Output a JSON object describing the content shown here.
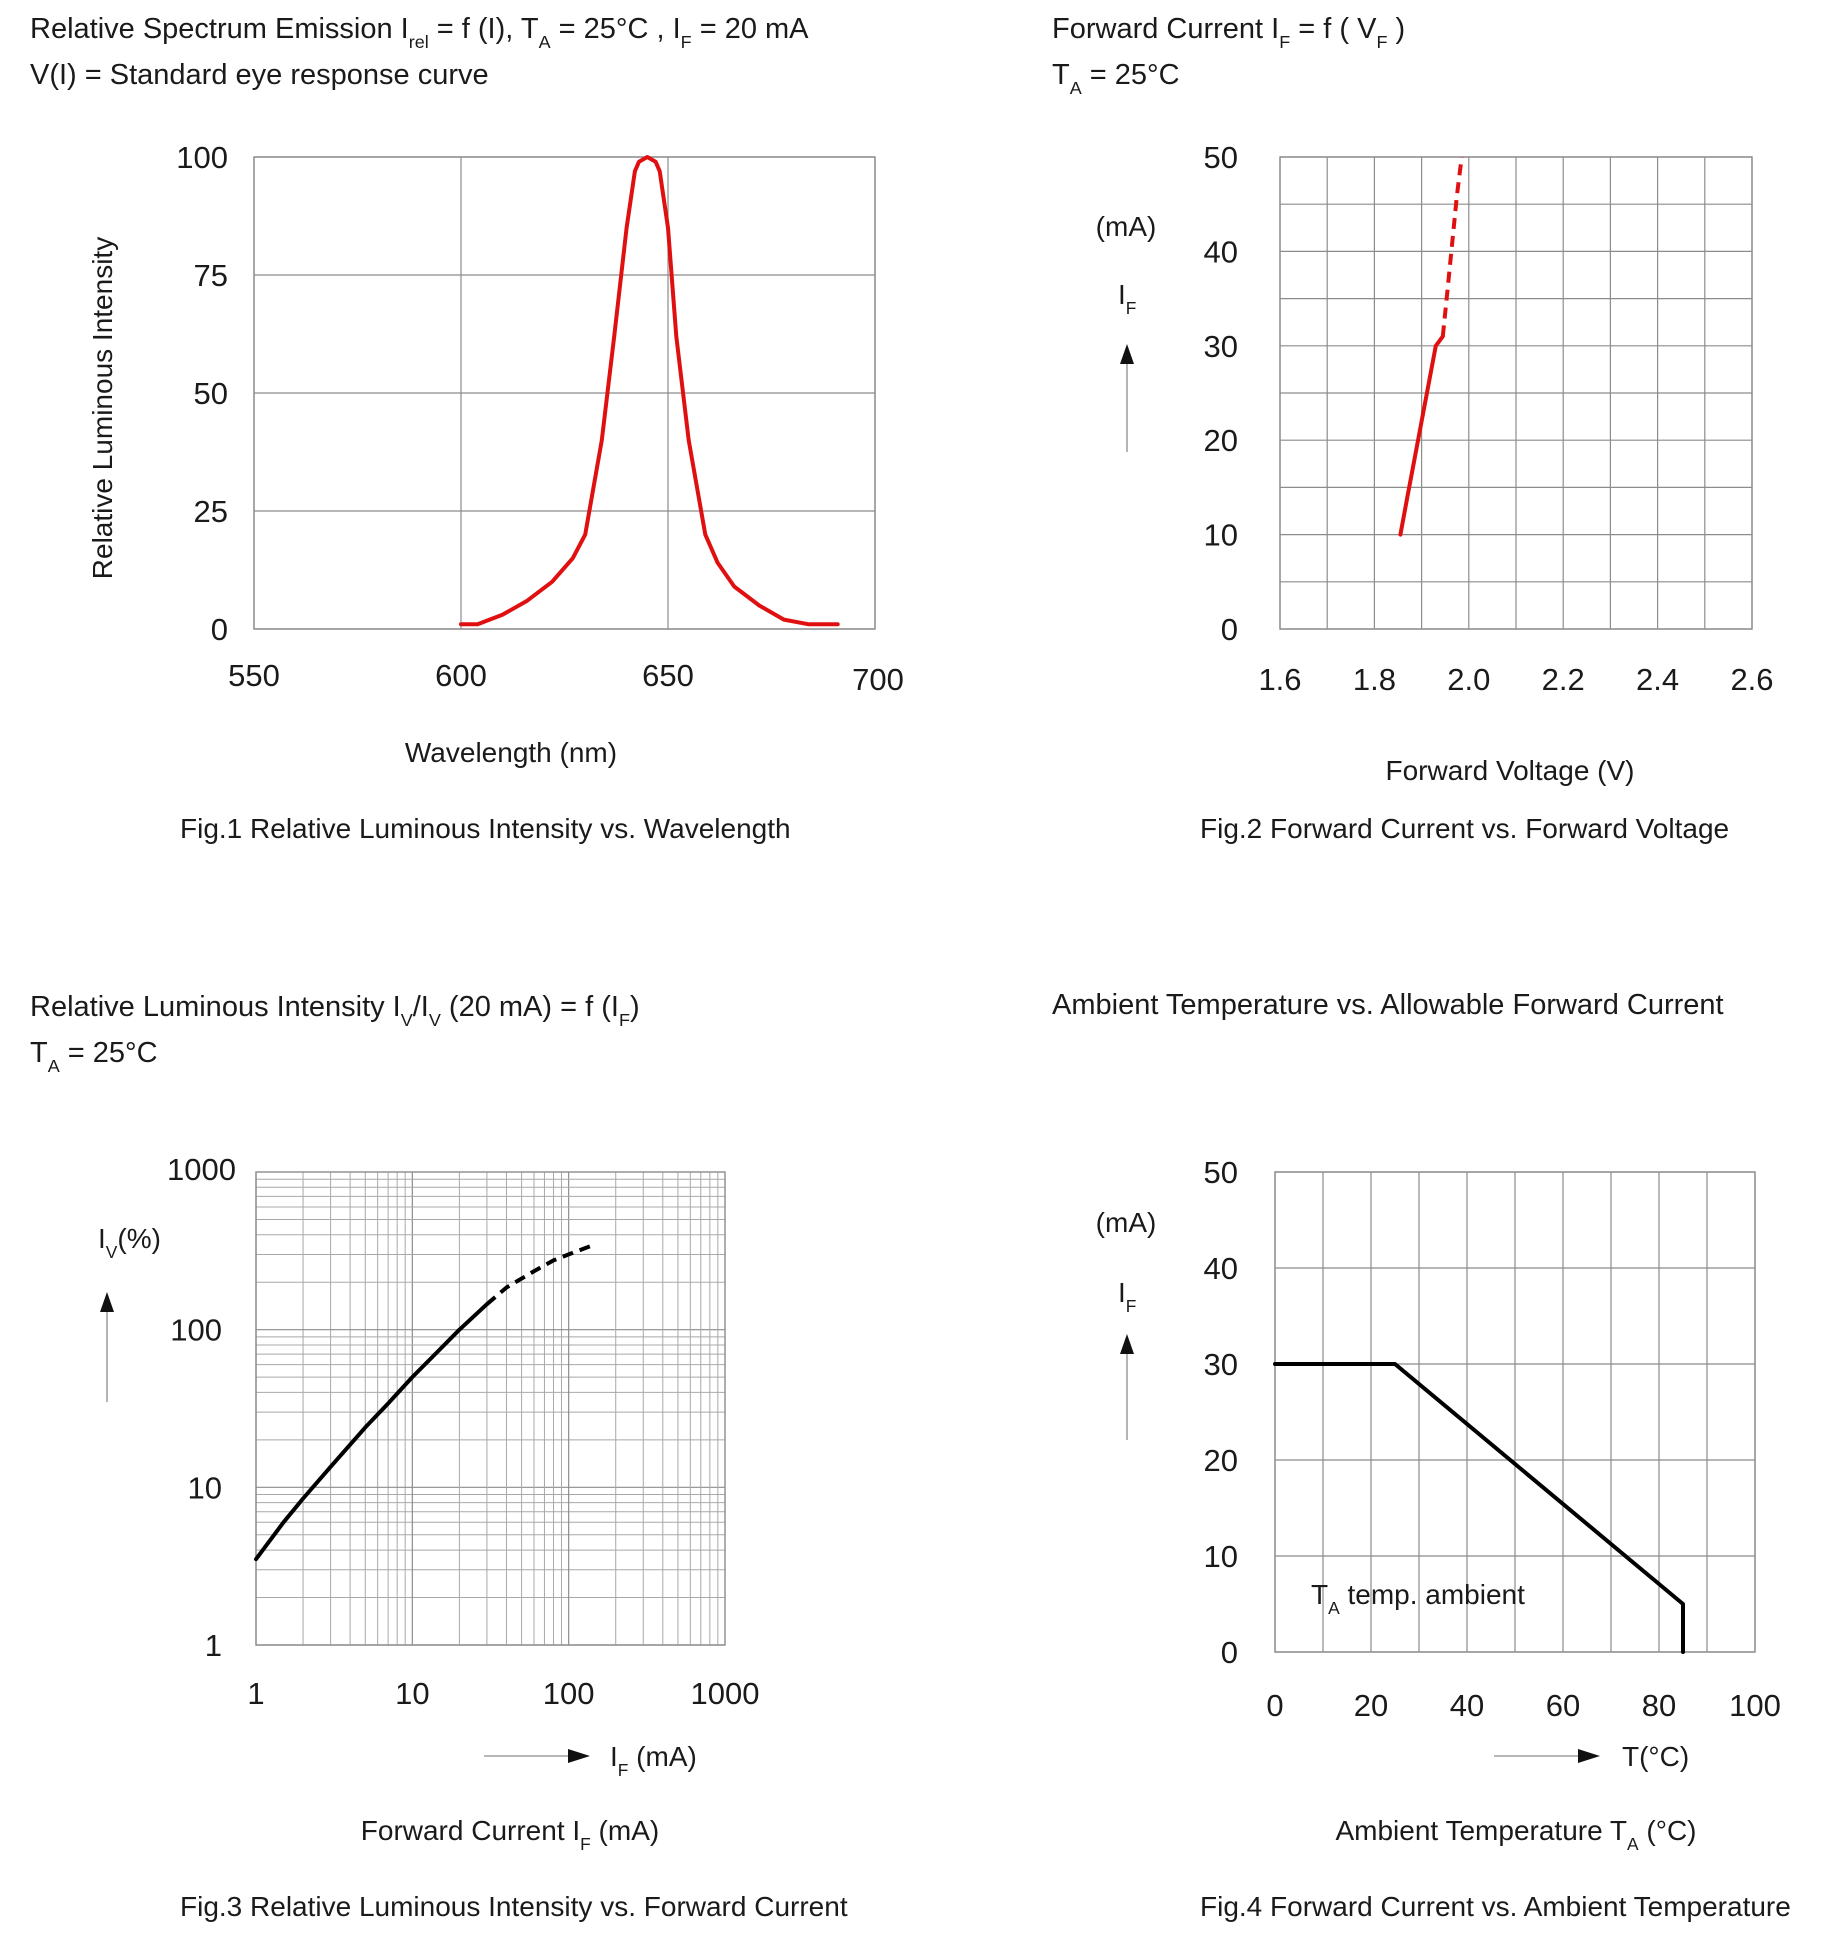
{
  "chart_data": [
    {
      "id": "fig1",
      "type": "line",
      "title_parts": [
        "Relative Spectrum Emission I",
        "rel",
        " = f (I), T",
        "A",
        " = 25°C , I",
        "F",
        " = 20 mA"
      ],
      "subtitle": "V(I) = Standard eye response curve",
      "xlabel": "Wavelength (nm)",
      "ylabel": "Relative Luminous Intensity",
      "caption": "Fig.1 Relative Luminous Intensity vs. Wavelength",
      "xlim": [
        550,
        700
      ],
      "ylim": [
        0,
        100
      ],
      "xticks": [
        550,
        600,
        650,
        700
      ],
      "yticks": [
        0,
        25,
        50,
        75,
        100
      ],
      "grid": true,
      "color": "#e01010",
      "series": [
        {
          "x": [
            600,
            604,
            610,
            616,
            622,
            627,
            630,
            634,
            637,
            640,
            642,
            643,
            645,
            647,
            648,
            650,
            652,
            655,
            659,
            662,
            666,
            672,
            678,
            684,
            688,
            691
          ],
          "y": [
            1,
            1,
            3,
            6,
            10,
            15,
            20,
            40,
            62,
            85,
            97,
            99,
            100,
            99,
            97,
            85,
            62,
            40,
            20,
            14,
            9,
            5,
            2,
            1,
            1,
            1
          ]
        }
      ]
    },
    {
      "id": "fig2",
      "type": "line",
      "title_parts": [
        "Forward Current I",
        "F",
        " = f ( V",
        "F",
        " )"
      ],
      "subtitle_parts": [
        "T",
        "A",
        " = 25°C"
      ],
      "unit_label": "(mA)",
      "axis_symbol": [
        "I",
        "F"
      ],
      "xlabel": "Forward Voltage (V)",
      "caption": "Fig.2 Forward Current vs. Forward Voltage",
      "xlim": [
        1.6,
        2.6
      ],
      "ylim": [
        0,
        50
      ],
      "xticks": [
        "1.6",
        "1.8",
        "2.0",
        "2.2",
        "2.4",
        "2.6"
      ],
      "yticks": [
        0,
        10,
        20,
        30,
        40,
        50
      ],
      "grid": true,
      "color": "#e01010",
      "series": [
        {
          "style": "solid",
          "x": [
            1.855,
            1.87,
            1.885,
            1.9,
            1.915,
            1.93,
            1.945
          ],
          "y": [
            10,
            14,
            18,
            22,
            26,
            30,
            31
          ]
        },
        {
          "style": "dashed",
          "x": [
            1.945,
            1.955,
            1.965,
            1.975,
            1.985
          ],
          "y": [
            31,
            36,
            41,
            46,
            50
          ]
        }
      ]
    },
    {
      "id": "fig3",
      "type": "line",
      "title_parts": [
        "Relative Luminous Intensity I",
        "V",
        "/I",
        "V",
        " (20 mA) = f (I",
        "F",
        ")"
      ],
      "subtitle_parts": [
        "T",
        "A",
        " = 25°C"
      ],
      "axis_symbol": [
        "I",
        "V",
        "(%)"
      ],
      "x_arrow_label": [
        "I",
        "F",
        " (mA)"
      ],
      "xlabel_parts": [
        "Forward Current I",
        "F",
        " (mA)"
      ],
      "caption": "Fig.3 Relative Luminous Intensity vs. Forward Current",
      "xscale": "log",
      "yscale": "log",
      "xlim": [
        1,
        1000
      ],
      "ylim": [
        1,
        1000
      ],
      "xticks": [
        1,
        10,
        100,
        1000
      ],
      "yticks": [
        1,
        10,
        100,
        1000
      ],
      "grid": true,
      "color": "#000000",
      "series": [
        {
          "style": "solid",
          "x": [
            1,
            1.5,
            2,
            3,
            5,
            7,
            10,
            15,
            20,
            30
          ],
          "y": [
            3.5,
            6,
            8.5,
            13.5,
            24,
            34,
            50,
            75,
            100,
            145
          ]
        },
        {
          "style": "dashed",
          "x": [
            30,
            40,
            60,
            80,
            100,
            150
          ],
          "y": [
            145,
            185,
            235,
            275,
            300,
            350
          ]
        }
      ]
    },
    {
      "id": "fig4",
      "type": "line",
      "title": "Ambient Temperature vs. Allowable Forward Current",
      "unit_label": "(mA)",
      "axis_symbol": [
        "I",
        "F"
      ],
      "x_arrow_label": "T(°C)",
      "xlabel_parts": [
        "Ambient Temperature T",
        "A",
        " (°C)"
      ],
      "annotation_parts": [
        "T",
        "A",
        " temp. ambient"
      ],
      "caption": "Fig.4 Forward Current vs. Ambient Temperature",
      "xlim": [
        0,
        100
      ],
      "ylim": [
        0,
        50
      ],
      "xticks": [
        0,
        20,
        40,
        60,
        80,
        100
      ],
      "yticks": [
        0,
        10,
        20,
        30,
        40,
        50
      ],
      "grid": true,
      "color": "#000000",
      "series": [
        {
          "style": "solid",
          "x": [
            0,
            25,
            85,
            85
          ],
          "y": [
            30,
            30,
            5,
            0
          ]
        }
      ]
    }
  ]
}
